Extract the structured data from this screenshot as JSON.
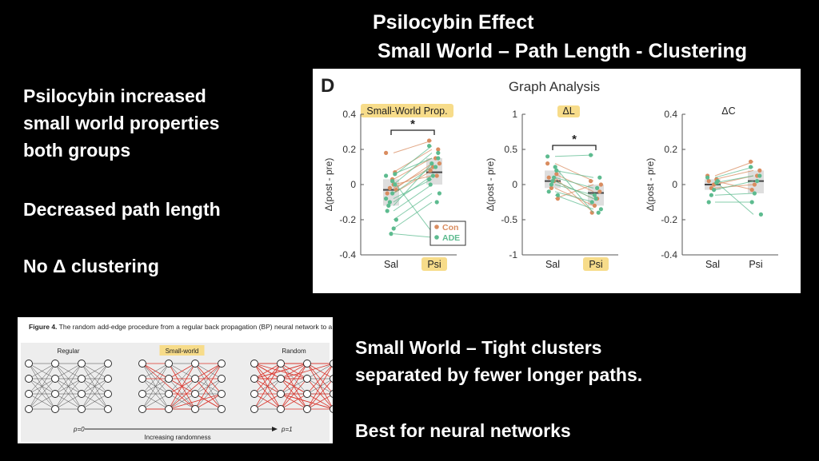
{
  "slide": {
    "title_line1": "Psilocybin Effect",
    "title_line2": "Small World – Path Length - Clustering",
    "left_points": [
      "Psilocybin increased",
      "small world properties",
      "both groups",
      "Decreased path length",
      "No Δ clustering"
    ],
    "right_points": [
      "Small World – Tight clusters",
      "separated by fewer longer paths.",
      "Best for  neural networks"
    ]
  },
  "graph_panel": {
    "panel_letter": "D",
    "title": "Graph Analysis",
    "ylabel": "Δ(post - pre)",
    "significance_marker": "*",
    "legend": [
      "Con",
      "ADE"
    ],
    "colors": {
      "con": "#d98c5f",
      "ade": "#5dbb8f",
      "highlight": "#f7dc8a",
      "box": "#d0d0d0"
    }
  },
  "chart_data": [
    {
      "type": "scatter",
      "title": "Small-World Prop.",
      "categories": [
        "Sal",
        "Psi"
      ],
      "ylabel": "Δ(post - pre)",
      "ylim": [
        -0.4,
        0.4
      ],
      "yticks": [
        "0.4",
        "0.2",
        "0",
        "-0.2",
        "-0.4"
      ],
      "median": [
        -0.03,
        0.07
      ],
      "series": [
        {
          "name": "Con",
          "Sal": [
            0.18,
            0.07,
            0.03,
            -0.02,
            -0.05,
            -0.03,
            0.0
          ],
          "Psi": [
            0.25,
            0.2,
            0.15,
            0.1,
            0.08,
            0.12,
            0.05
          ]
        },
        {
          "name": "ADE",
          "Sal": [
            0.05,
            0.0,
            -0.05,
            -0.1,
            -0.15,
            -0.2,
            -0.25,
            -0.28,
            -0.12,
            -0.08,
            0.06,
            0.02
          ],
          "Psi": [
            0.22,
            0.18,
            0.1,
            0.05,
            0.0,
            -0.05,
            -0.1,
            -0.3,
            0.12,
            0.03,
            0.15,
            -0.27
          ]
        }
      ]
    },
    {
      "type": "scatter",
      "title": "ΔL",
      "categories": [
        "Sal",
        "Psi"
      ],
      "ylabel": "Δ(post - pre)",
      "ylim": [
        -1,
        1
      ],
      "yticks": [
        "1",
        "0.5",
        "0",
        "-0.5",
        "-1"
      ],
      "median": [
        0.05,
        -0.12
      ],
      "series": [
        {
          "name": "Con",
          "Sal": [
            0.3,
            0.15,
            0.05,
            -0.05,
            0.1,
            -0.2
          ],
          "Psi": [
            0.05,
            -0.1,
            -0.2,
            -0.3,
            -0.4,
            0.0
          ]
        },
        {
          "name": "ADE",
          "Sal": [
            0.4,
            0.2,
            0.1,
            0.0,
            -0.1,
            -0.15,
            0.25,
            0.05
          ],
          "Psi": [
            0.42,
            0.1,
            -0.05,
            -0.15,
            -0.25,
            -0.35,
            -0.4,
            -0.2
          ]
        }
      ]
    },
    {
      "type": "scatter",
      "title": "ΔC",
      "categories": [
        "Sal",
        "Psi"
      ],
      "ylabel": "Δ(post - pre)",
      "ylim": [
        -0.4,
        0.4
      ],
      "yticks": [
        "0.4",
        "0.2",
        "0",
        "-0.2",
        "-0.4"
      ],
      "median": [
        0.0,
        0.02
      ],
      "series": [
        {
          "name": "Con",
          "Sal": [
            0.05,
            0.03,
            0.0,
            -0.02,
            0.02
          ],
          "Psi": [
            0.13,
            0.08,
            0.05,
            0.0,
            -0.03
          ]
        },
        {
          "name": "ADE",
          "Sal": [
            0.04,
            0.01,
            -0.03,
            -0.06,
            -0.1,
            0.02
          ],
          "Psi": [
            0.1,
            0.05,
            0.02,
            -0.05,
            -0.1,
            -0.17
          ]
        }
      ]
    }
  ],
  "figure4": {
    "caption_bold": "Figure 4.",
    "caption_text": " The random add-edge procedure from a regular back propagation (BP) neural network to a random one.",
    "labels": [
      "Regular",
      "Small-world",
      "Random"
    ],
    "p_start": "p=0",
    "p_end": "p=1",
    "axis_label": "Increasing randomness"
  }
}
